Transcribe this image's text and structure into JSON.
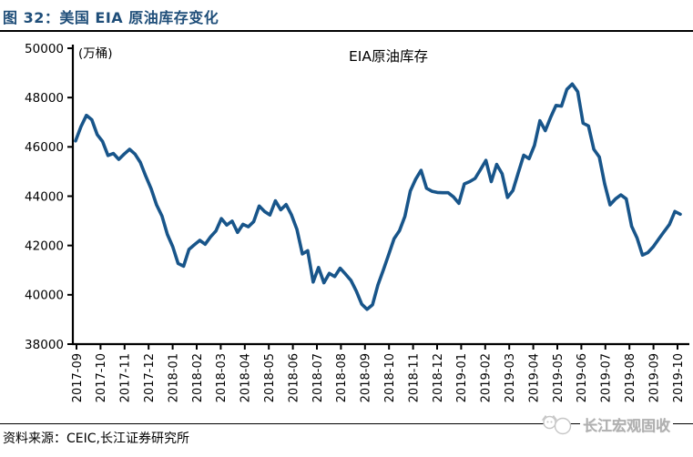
{
  "header": {
    "title": "图 32：美国 EIA 原油库存变化"
  },
  "footer": {
    "source_note": "资料来源：CEIC,长江证券研究所",
    "brand_text": "长江宏观固收"
  },
  "colors": {
    "title_blue": "#1F4E79",
    "line_blue": "#18558A",
    "axis_black": "#000000",
    "brand_gray": "#AFAFAF"
  },
  "chart_data": {
    "type": "line",
    "title": "EIA原油库存",
    "unit_label": "(万桶)",
    "xlabel": "",
    "ylabel": "",
    "ylim": [
      38000,
      50000
    ],
    "yticks": [
      50000,
      48000,
      46000,
      44000,
      42000,
      40000,
      38000
    ],
    "grid": false,
    "legend_position": "top-center",
    "line_color": "#18558A",
    "xtick_labels": [
      "2017-09",
      "2017-10",
      "2017-11",
      "2017-12",
      "2018-01",
      "2018-02",
      "2018-03",
      "2018-04",
      "2018-05",
      "2018-06",
      "2018-07",
      "2018-08",
      "2018-09",
      "2018-10",
      "2018-11",
      "2018-12",
      "2019-01",
      "2019-02",
      "2019-03",
      "2019-04",
      "2019-05",
      "2019-06",
      "2019-07",
      "2019-08",
      "2019-09",
      "2019-10"
    ],
    "x_frequency": "weekly",
    "series": [
      {
        "name": "EIA原油库存",
        "values": [
          46240,
          46820,
          47280,
          47100,
          46500,
          46220,
          45650,
          45730,
          45490,
          45710,
          45900,
          45710,
          45370,
          44810,
          44300,
          43650,
          43190,
          42450,
          41950,
          41270,
          41160,
          41840,
          42030,
          42210,
          42050,
          42350,
          42590,
          43090,
          42830,
          42990,
          42530,
          42860,
          42760,
          42970,
          43600,
          43380,
          43240,
          43810,
          43450,
          43660,
          43240,
          42650,
          41660,
          41790,
          40520,
          41110,
          40490,
          40870,
          40740,
          41080,
          40840,
          40580,
          40150,
          39620,
          39410,
          39600,
          40400,
          41000,
          41640,
          42280,
          42600,
          43180,
          44210,
          44690,
          45050,
          44320,
          44200,
          44150,
          44140,
          44140,
          43970,
          43710,
          44500,
          44590,
          44720,
          45080,
          45450,
          44590,
          45290,
          44910,
          43950,
          44230,
          44950,
          45660,
          45520,
          46060,
          47060,
          46660,
          47200,
          47680,
          47650,
          48330,
          48550,
          48240,
          46960,
          46850,
          45900,
          45590,
          44500,
          43650,
          43890,
          44050,
          43890,
          42780,
          42300,
          41610,
          41710,
          41950,
          42260,
          42560,
          42850,
          43380,
          43270
        ]
      }
    ]
  }
}
